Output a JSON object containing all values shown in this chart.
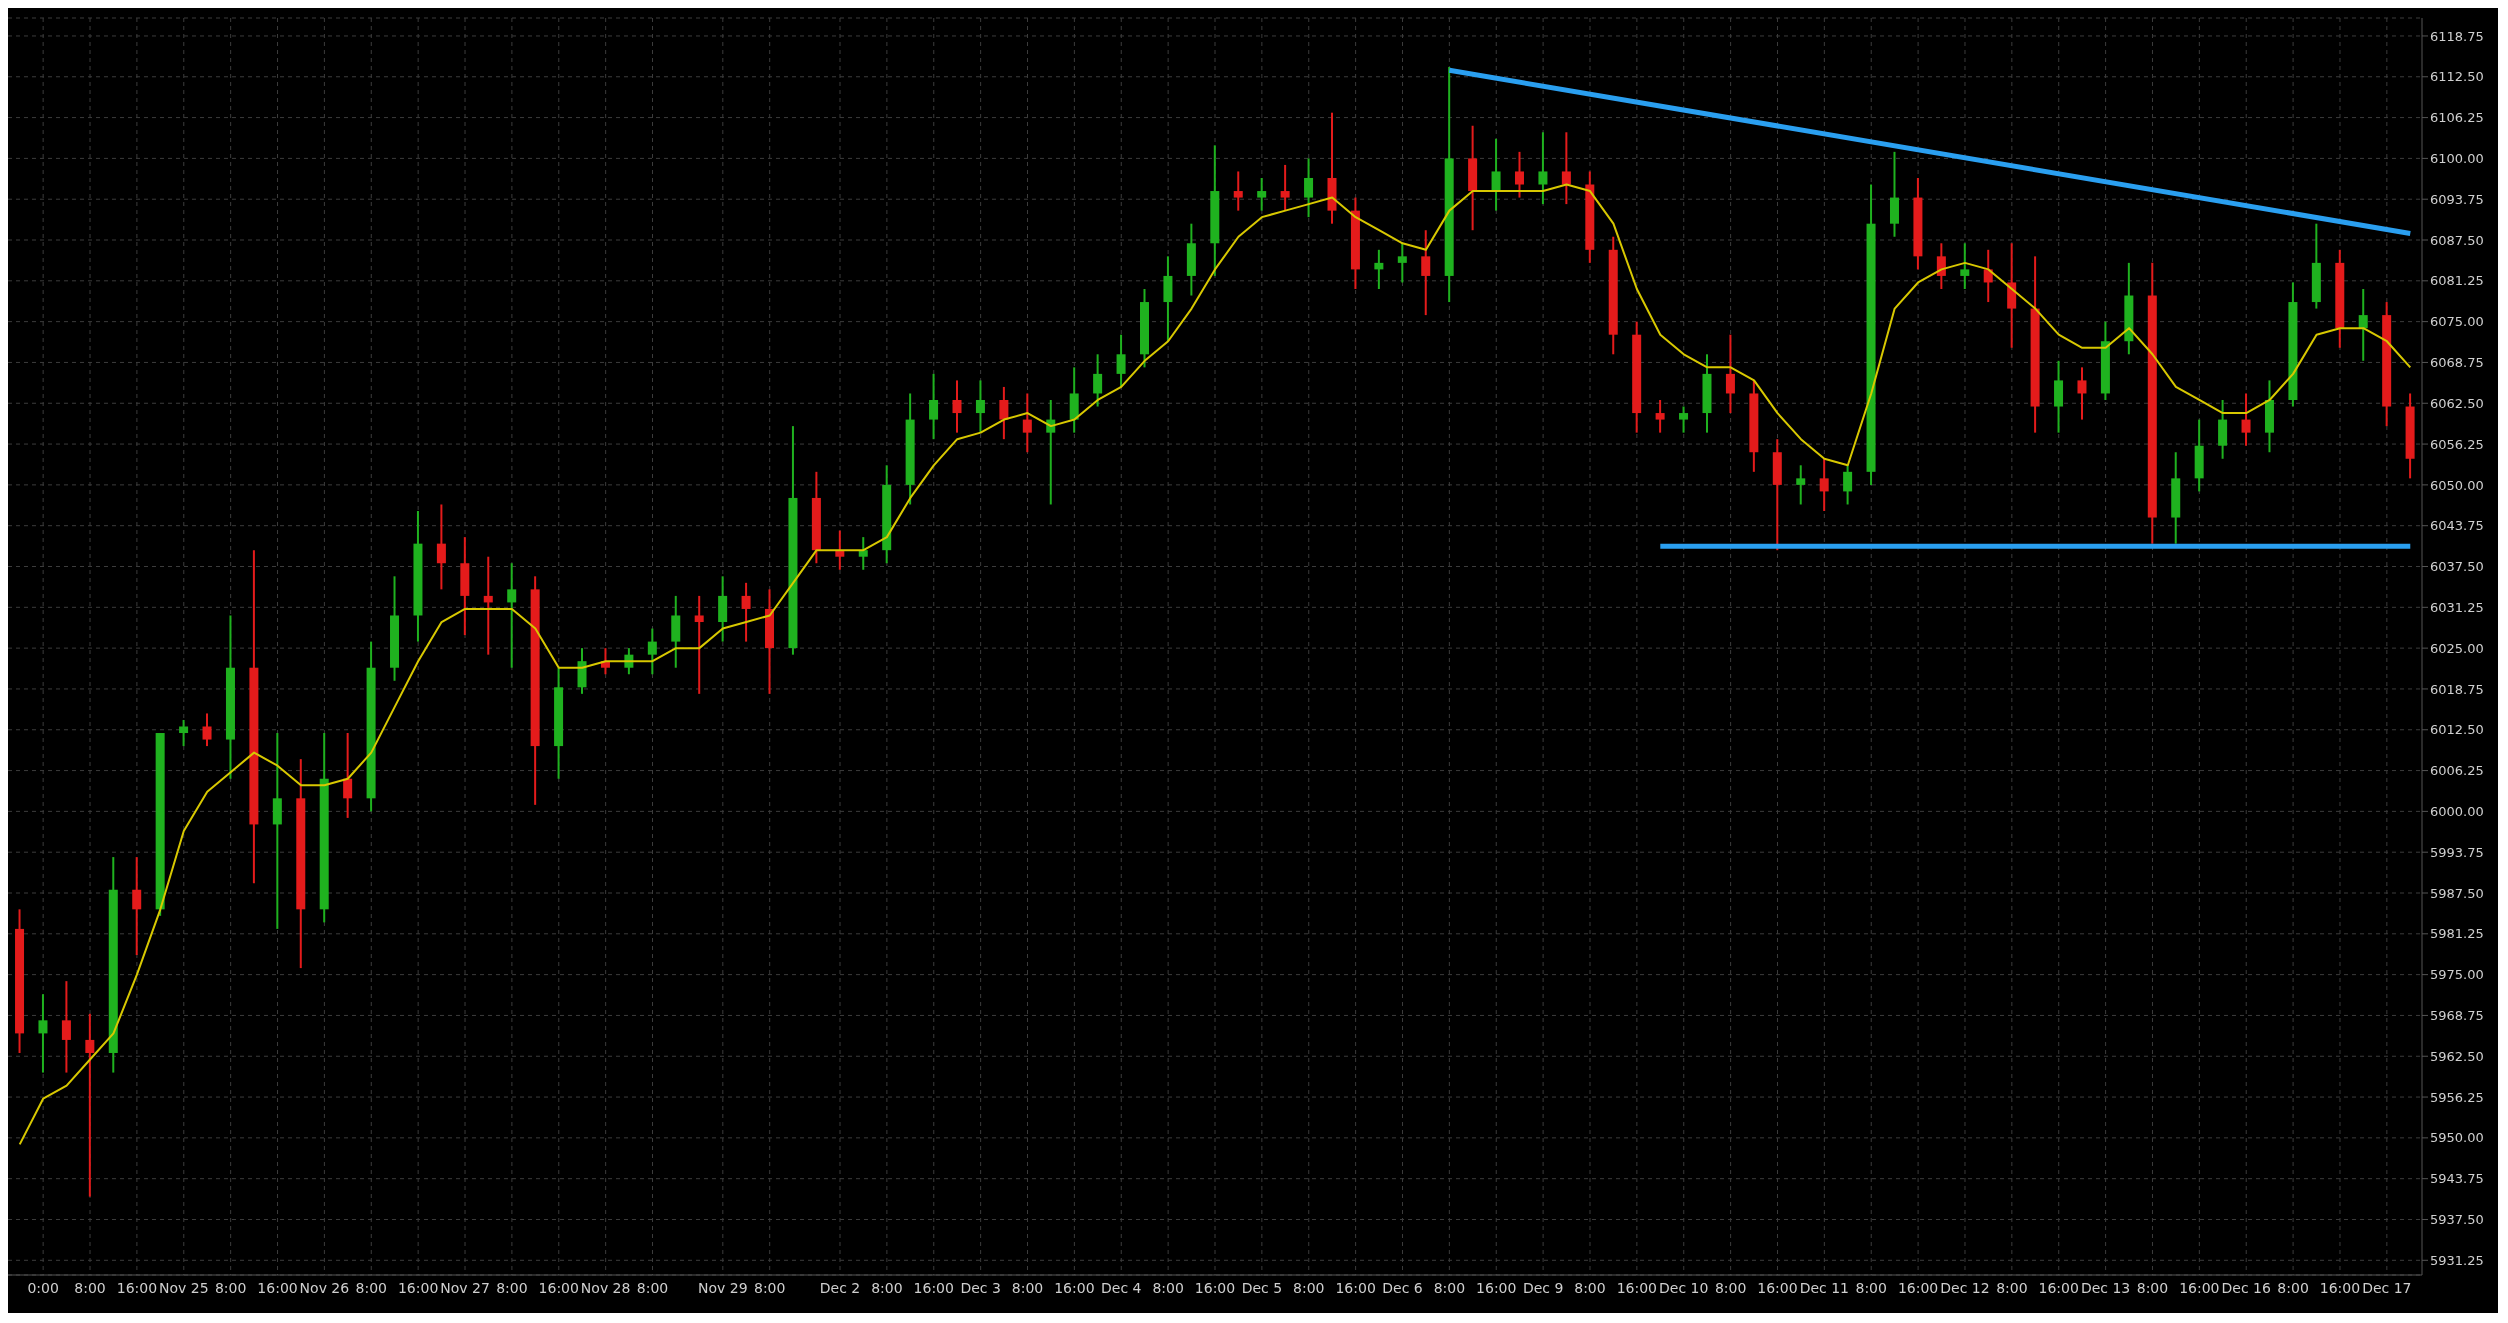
{
  "chart_data": {
    "type": "candlestick",
    "categories": [
      null,
      "0:00",
      null,
      "8:00",
      null,
      "16:00",
      null,
      "Nov 25",
      null,
      "8:00",
      null,
      "16:00",
      null,
      "Nov 26",
      null,
      "8:00",
      null,
      "16:00",
      null,
      "Nov 27",
      null,
      "8:00",
      null,
      "16:00",
      null,
      "Nov 28",
      null,
      "8:00",
      null,
      null,
      "Nov 29",
      null,
      "8:00",
      null,
      null,
      "Dec 2",
      null,
      "8:00",
      null,
      "16:00",
      null,
      "Dec 3",
      null,
      "8:00",
      null,
      "16:00",
      null,
      "Dec 4",
      null,
      "8:00",
      null,
      "16:00",
      null,
      "Dec 5",
      null,
      "8:00",
      null,
      "16:00",
      null,
      "Dec 6",
      null,
      "8:00",
      null,
      "16:00",
      null,
      "Dec 9",
      null,
      "8:00",
      null,
      "16:00",
      null,
      "Dec 10",
      null,
      "8:00",
      null,
      "16:00",
      null,
      "Dec 11",
      null,
      "8:00",
      null,
      "16:00",
      null,
      "Dec 12",
      null,
      "8:00",
      null,
      "16:00",
      null,
      "Dec 13",
      null,
      "8:00",
      null,
      "16:00",
      null,
      "Dec 16",
      null,
      "8:00",
      null,
      "16:00",
      null,
      "Dec 17",
      null
    ],
    "series": [
      {
        "type": "line",
        "color": "#d8c800",
        "values": [
          5949,
          5956,
          5958,
          5962,
          5966,
          5975,
          5985,
          5997,
          6003,
          6006,
          6009,
          6007,
          6004,
          6004,
          6005,
          6009,
          6016,
          6023,
          6029,
          6031,
          6031,
          6031,
          6028,
          6022,
          6022,
          6023,
          6023,
          6023,
          6025,
          6025,
          6028,
          6029,
          6030,
          6035,
          6040,
          6040,
          6040,
          6042,
          6048,
          6053,
          6057,
          6058,
          6060,
          6061,
          6059,
          6060,
          6063,
          6065,
          6069,
          6072,
          6077,
          6083,
          6088,
          6091,
          6092,
          6093,
          6094,
          6091,
          6089,
          6087,
          6086,
          6092,
          6095,
          6095,
          6095,
          6095,
          6096,
          6095,
          6090,
          6080,
          6073,
          6070,
          6068,
          6068,
          6066,
          6061,
          6057,
          6054,
          6053,
          6064,
          6077,
          6081,
          6083,
          6084,
          6083,
          6080,
          6077,
          6073,
          6071,
          6071,
          6074,
          6070,
          6065,
          6063,
          6061,
          6061,
          6063,
          6067,
          6073,
          6074,
          6074,
          6072,
          6068
        ]
      },
      {
        "type": "line",
        "color": "#2a9ff0",
        "values": [
          null,
          null,
          null,
          null,
          null,
          null,
          null,
          null,
          null,
          null,
          null,
          null,
          null,
          null,
          null,
          null,
          null,
          null,
          null,
          null,
          null,
          null,
          null,
          null,
          null,
          null,
          null,
          null,
          null,
          null,
          null,
          null,
          null,
          null,
          null,
          null,
          null,
          null,
          null,
          null,
          null,
          null,
          null,
          null,
          null,
          null,
          null,
          null,
          null,
          null,
          null,
          null,
          null,
          null,
          null,
          null,
          null,
          null,
          null,
          null,
          null,
          6113.5,
          null,
          null,
          null,
          null,
          null,
          null,
          null,
          null,
          null,
          null,
          null,
          null,
          null,
          null,
          null,
          null,
          null,
          null,
          null,
          null,
          null,
          null,
          null,
          null,
          null,
          null,
          null,
          null,
          null,
          null,
          null,
          null,
          null,
          null,
          null,
          null,
          null,
          null,
          null,
          null,
          6088.5
        ]
      },
      {
        "type": "line",
        "color": "#2a9ff0",
        "values": [
          null,
          null,
          null,
          null,
          null,
          null,
          null,
          null,
          null,
          null,
          null,
          null,
          null,
          null,
          null,
          null,
          null,
          null,
          null,
          null,
          null,
          null,
          null,
          null,
          null,
          null,
          null,
          null,
          null,
          null,
          null,
          null,
          null,
          null,
          null,
          null,
          null,
          null,
          null,
          null,
          null,
          null,
          null,
          null,
          null,
          null,
          null,
          null,
          null,
          null,
          null,
          null,
          null,
          null,
          null,
          null,
          null,
          null,
          null,
          null,
          null,
          null,
          null,
          null,
          null,
          null,
          null,
          null,
          null,
          null,
          6040.6,
          null,
          null,
          null,
          null,
          null,
          null,
          null,
          null,
          null,
          null,
          null,
          null,
          null,
          null,
          null,
          null,
          null,
          null,
          null,
          null,
          null,
          null,
          null,
          null,
          null,
          null,
          null,
          null,
          null,
          null,
          null,
          6040.6
        ]
      },
      {
        "ohlc": [
          [
            5982,
            5985,
            5963,
            5966
          ],
          [
            5966,
            5972,
            5960,
            5968
          ],
          [
            5968,
            5974,
            5960,
            5965
          ],
          [
            5965,
            5969,
            5941,
            5963
          ],
          [
            5963,
            5993,
            5960,
            5988
          ],
          [
            5988,
            5993,
            5978,
            5985
          ],
          [
            5985,
            6012,
            5984,
            6012
          ],
          [
            6012,
            6014,
            6010,
            6013
          ],
          [
            6013,
            6015,
            6010,
            6011
          ],
          [
            6011,
            6030,
            6005,
            6022
          ],
          [
            6022,
            6040,
            5989,
            5998
          ],
          [
            5998,
            6012,
            5982,
            6002
          ],
          [
            6002,
            6008,
            5976,
            5985
          ],
          [
            5985,
            6012,
            5983,
            6005
          ],
          [
            6005,
            6012,
            5999,
            6002
          ],
          [
            6002,
            6026,
            6000,
            6022
          ],
          [
            6022,
            6036,
            6020,
            6030
          ],
          [
            6030,
            6046,
            6026,
            6041
          ],
          [
            6041,
            6047,
            6034,
            6038
          ],
          [
            6038,
            6042,
            6027,
            6033
          ],
          [
            6033,
            6039,
            6024,
            6032
          ],
          [
            6032,
            6038,
            6022,
            6034
          ],
          [
            6034,
            6036,
            6001,
            6010
          ],
          [
            6010,
            6022,
            6005,
            6019
          ],
          [
            6019,
            6025,
            6018,
            6023
          ],
          [
            6023,
            6025,
            6021,
            6022
          ],
          [
            6022,
            6025,
            6021,
            6024
          ],
          [
            6024,
            6028,
            6021,
            6026
          ],
          [
            6026,
            6033,
            6022,
            6030
          ],
          [
            6030,
            6033,
            6018,
            6029
          ],
          [
            6029,
            6036,
            6026,
            6033
          ],
          [
            6033,
            6035,
            6026,
            6031
          ],
          [
            6031,
            6034,
            6018,
            6025
          ],
          [
            6025,
            6059,
            6024,
            6048
          ],
          [
            6048,
            6052,
            6038,
            6040
          ],
          [
            6040,
            6043,
            6037,
            6039
          ],
          [
            6039,
            6042,
            6037,
            6040
          ],
          [
            6040,
            6053,
            6038,
            6050
          ],
          [
            6050,
            6064,
            6047,
            6060
          ],
          [
            6060,
            6067,
            6057,
            6063
          ],
          [
            6063,
            6066,
            6058,
            6061
          ],
          [
            6061,
            6066,
            6058,
            6063
          ],
          [
            6063,
            6065,
            6057,
            6060
          ],
          [
            6060,
            6064,
            6055,
            6058
          ],
          [
            6058,
            6063,
            6047,
            6060
          ],
          [
            6060,
            6068,
            6058,
            6064
          ],
          [
            6064,
            6070,
            6062,
            6067
          ],
          [
            6067,
            6073,
            6065,
            6070
          ],
          [
            6070,
            6080,
            6068,
            6078
          ],
          [
            6078,
            6085,
            6072,
            6082
          ],
          [
            6082,
            6090,
            6079,
            6087
          ],
          [
            6087,
            6102,
            6082,
            6095
          ],
          [
            6095,
            6098,
            6092,
            6094
          ],
          [
            6094,
            6097,
            6092,
            6095
          ],
          [
            6095,
            6099,
            6092,
            6094
          ],
          [
            6094,
            6100,
            6091,
            6097
          ],
          [
            6097,
            6107,
            6090,
            6092
          ],
          [
            6092,
            6094,
            6080,
            6083
          ],
          [
            6083,
            6086,
            6080,
            6084
          ],
          [
            6084,
            6087,
            6081,
            6085
          ],
          [
            6085,
            6089,
            6076,
            6082
          ],
          [
            6082,
            6114,
            6078,
            6100
          ],
          [
            6100,
            6105,
            6089,
            6095
          ],
          [
            6095,
            6103,
            6092,
            6098
          ],
          [
            6098,
            6101,
            6094,
            6096
          ],
          [
            6096,
            6104,
            6093,
            6098
          ],
          [
            6098,
            6104,
            6093,
            6096
          ],
          [
            6096,
            6098,
            6084,
            6086
          ],
          [
            6086,
            6088,
            6070,
            6073
          ],
          [
            6073,
            6075,
            6058,
            6061
          ],
          [
            6061,
            6063,
            6058,
            6060
          ],
          [
            6060,
            6062,
            6058,
            6061
          ],
          [
            6061,
            6070,
            6058,
            6067
          ],
          [
            6067,
            6073,
            6061,
            6064
          ],
          [
            6064,
            6066,
            6052,
            6055
          ],
          [
            6055,
            6057,
            6040,
            6050
          ],
          [
            6050,
            6053,
            6047,
            6051
          ],
          [
            6051,
            6054,
            6046,
            6049
          ],
          [
            6049,
            6053,
            6047,
            6052
          ],
          [
            6052,
            6096,
            6050,
            6090
          ],
          [
            6090,
            6101,
            6088,
            6094
          ],
          [
            6094,
            6097,
            6083,
            6085
          ],
          [
            6085,
            6087,
            6080,
            6082
          ],
          [
            6082,
            6087,
            6080,
            6083
          ],
          [
            6083,
            6086,
            6078,
            6081
          ],
          [
            6081,
            6087,
            6071,
            6077
          ],
          [
            6077,
            6085,
            6058,
            6062
          ],
          [
            6062,
            6069,
            6058,
            6066
          ],
          [
            6066,
            6068,
            6060,
            6064
          ],
          [
            6064,
            6075,
            6063,
            6072
          ],
          [
            6072,
            6084,
            6070,
            6079
          ],
          [
            6079,
            6084,
            6041,
            6045
          ],
          [
            6045,
            6055,
            6041,
            6051
          ],
          [
            6051,
            6060,
            6049,
            6056
          ],
          [
            6056,
            6063,
            6054,
            6060
          ],
          [
            6060,
            6064,
            6056,
            6058
          ],
          [
            6058,
            6066,
            6055,
            6063
          ],
          [
            6063,
            6081,
            6062,
            6078
          ],
          [
            6078,
            6090,
            6077,
            6084
          ],
          [
            6084,
            6086,
            6071,
            6074
          ],
          [
            6074,
            6080,
            6069,
            6076
          ],
          [
            6076,
            6078,
            6059,
            6062
          ],
          [
            6062,
            6064,
            6051,
            6054
          ]
        ],
        "colors": [
          "#e41b1b",
          "#1fb21f",
          "#e41b1b",
          "#e41b1b",
          "#1fb21f",
          "#e41b1b",
          "#1fb21f",
          "#1fb21f",
          "#e41b1b",
          "#1fb21f",
          "#e41b1b",
          "#1fb21f",
          "#e41b1b",
          "#1fb21f",
          "#e41b1b",
          "#1fb21f",
          "#1fb21f",
          "#1fb21f",
          "#e41b1b",
          "#e41b1b",
          "#e41b1b",
          "#1fb21f",
          "#e41b1b",
          "#1fb21f",
          "#1fb21f",
          "#e41b1b",
          "#1fb21f",
          "#1fb21f",
          "#1fb21f",
          "#e41b1b",
          "#1fb21f",
          "#e41b1b",
          "#e41b1b",
          "#1fb21f",
          "#e41b1b",
          "#e41b1b",
          "#1fb21f",
          "#1fb21f",
          "#1fb21f",
          "#1fb21f",
          "#e41b1b",
          "#1fb21f",
          "#e41b1b",
          "#e41b1b",
          "#1fb21f",
          "#1fb21f",
          "#1fb21f",
          "#1fb21f",
          "#1fb21f",
          "#1fb21f",
          "#1fb21f",
          "#1fb21f",
          "#e41b1b",
          "#1fb21f",
          "#e41b1b",
          "#1fb21f",
          "#e41b1b",
          "#e41b1b",
          "#1fb21f",
          "#1fb21f",
          "#e41b1b",
          "#1fb21f",
          "#e41b1b",
          "#1fb21f",
          "#e41b1b",
          "#1fb21f",
          "#e41b1b",
          "#e41b1b",
          "#e41b1b",
          "#e41b1b",
          "#e41b1b",
          "#1fb21f",
          "#1fb21f",
          "#e41b1b",
          "#e41b1b",
          "#e41b1b",
          "#1fb21f",
          "#e41b1b",
          "#1fb21f",
          "#1fb21f",
          "#1fb21f",
          "#e41b1b",
          "#e41b1b",
          "#1fb21f",
          "#e41b1b",
          "#e41b1b",
          "#e41b1b",
          "#1fb21f",
          "#e41b1b",
          "#1fb21f",
          "#1fb21f",
          "#e41b1b",
          "#1fb21f",
          "#1fb21f",
          "#1fb21f",
          "#e41b1b",
          "#1fb21f",
          "#1fb21f",
          "#1fb21f",
          "#e41b1b",
          "#1fb21f",
          "#e41b1b",
          "#e41b1b"
        ]
      }
    ],
    "ylim": [
      5929,
      6121.5
    ],
    "yticks": [
      {
        "value": 5931.25,
        "label": "5931.25"
      },
      {
        "value": 5937.5,
        "label": "5937.50"
      },
      {
        "value": 5943.75,
        "label": "5943.75"
      },
      {
        "value": 5950,
        "label": "5950.00"
      },
      {
        "value": 5956.25,
        "label": "5956.25"
      },
      {
        "value": 5962.5,
        "label": "5962.50"
      },
      {
        "value": 5968.75,
        "label": "5968.75"
      },
      {
        "value": 5975,
        "label": "5975.00"
      },
      {
        "value": 5981.25,
        "label": "5981.25"
      },
      {
        "value": 5987.5,
        "label": "5987.50"
      },
      {
        "value": 5993.75,
        "label": "5993.75"
      },
      {
        "value": 6000,
        "label": "6000.00"
      },
      {
        "value": 6006.25,
        "label": "6006.25"
      },
      {
        "value": 6012.5,
        "label": "6012.50"
      },
      {
        "value": 6018.75,
        "label": "6018.75"
      },
      {
        "value": 6025,
        "label": "6025.00"
      },
      {
        "value": 6031.25,
        "label": "6031.25"
      },
      {
        "value": 6037.5,
        "label": "6037.50"
      },
      {
        "value": 6043.75,
        "label": "6043.75"
      },
      {
        "value": 6050,
        "label": "6050.00"
      },
      {
        "value": 6056.25,
        "label": "6056.25"
      },
      {
        "value": 6062.5,
        "label": "6062.50"
      },
      {
        "value": 6068.75,
        "label": "6068.75"
      },
      {
        "value": 6075,
        "label": "6075.00"
      },
      {
        "value": 6081.25,
        "label": "6081.25"
      },
      {
        "value": 6087.5,
        "label": "6087.50"
      },
      {
        "value": 6093.75,
        "label": "6093.75"
      },
      {
        "value": 6100,
        "label": "6100.00"
      },
      {
        "value": 6106.25,
        "label": "6106.25"
      },
      {
        "value": 6112.5,
        "label": "6112.50"
      },
      {
        "value": 6118.75,
        "label": "6118.75"
      }
    ],
    "grid": true
  }
}
